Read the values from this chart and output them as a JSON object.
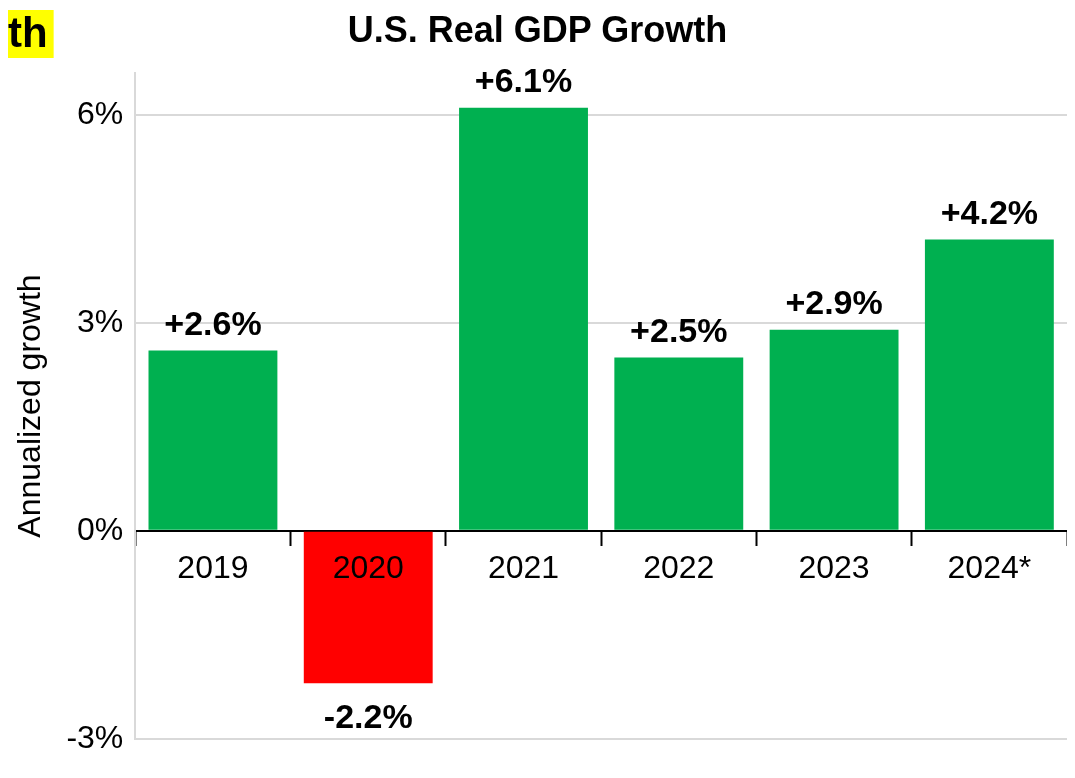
{
  "chart_data": {
    "type": "bar",
    "title": "U.S. Real GDP Growth",
    "ylabel": "Annualized growth",
    "annotations": [
      "th"
    ],
    "categories": [
      "2019",
      "2020",
      "2021",
      "2022",
      "2023",
      "2024*"
    ],
    "values": [
      2.6,
      -2.2,
      6.1,
      2.5,
      2.9,
      4.2
    ],
    "colors": [
      "#00b050",
      "#ff0000",
      "#00b050",
      "#00b050",
      "#00b050",
      "#00b050"
    ],
    "value_labels": [
      "+2.6%",
      "-2.2%",
      "+6.1%",
      "+2.5%",
      "+2.9%",
      "+4.2%"
    ],
    "ylim": [
      -3,
      6.6
    ],
    "yticks": [
      {
        "value": -3,
        "label": "-3%"
      },
      {
        "value": 0,
        "label": "0%"
      },
      {
        "value": 3,
        "label": "3%"
      },
      {
        "value": 6,
        "label": "6%"
      }
    ],
    "grid": "y",
    "legend": false
  }
}
